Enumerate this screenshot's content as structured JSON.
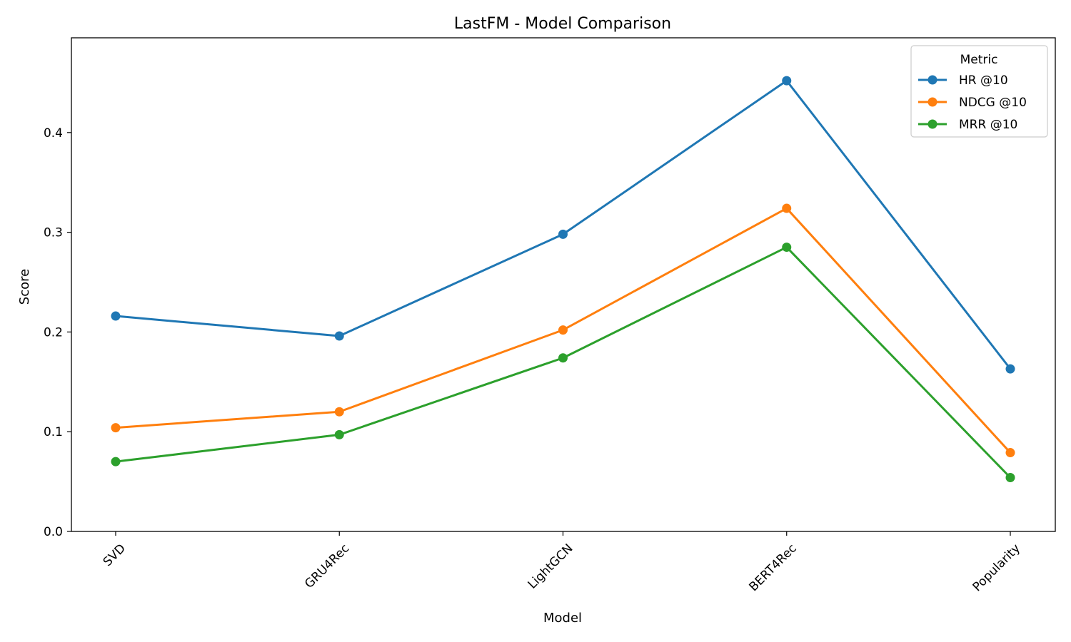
{
  "chart_data": {
    "type": "line",
    "title": "LastFM - Model Comparison",
    "xlabel": "Model",
    "ylabel": "Score",
    "categories": [
      "SVD",
      "GRU4Rec",
      "LightGCN",
      "BERT4Rec",
      "Popularity"
    ],
    "ylim": [
      0,
      0.495
    ],
    "yticks": [
      0.0,
      0.1,
      0.2,
      0.3,
      0.4
    ],
    "ytick_labels": [
      "0.0",
      "0.1",
      "0.2",
      "0.3",
      "0.4"
    ],
    "grid": false,
    "legend": {
      "title": "Metric",
      "placement": "top-right"
    },
    "series": [
      {
        "name": "HR @10",
        "color": "#1f77b4",
        "values": [
          0.216,
          0.196,
          0.298,
          0.452,
          0.163
        ]
      },
      {
        "name": "NDCG @10",
        "color": "#ff7f0e",
        "values": [
          0.104,
          0.12,
          0.202,
          0.324,
          0.079
        ]
      },
      {
        "name": "MRR @10",
        "color": "#2ca02c",
        "values": [
          0.07,
          0.097,
          0.174,
          0.285,
          0.054
        ]
      }
    ]
  }
}
